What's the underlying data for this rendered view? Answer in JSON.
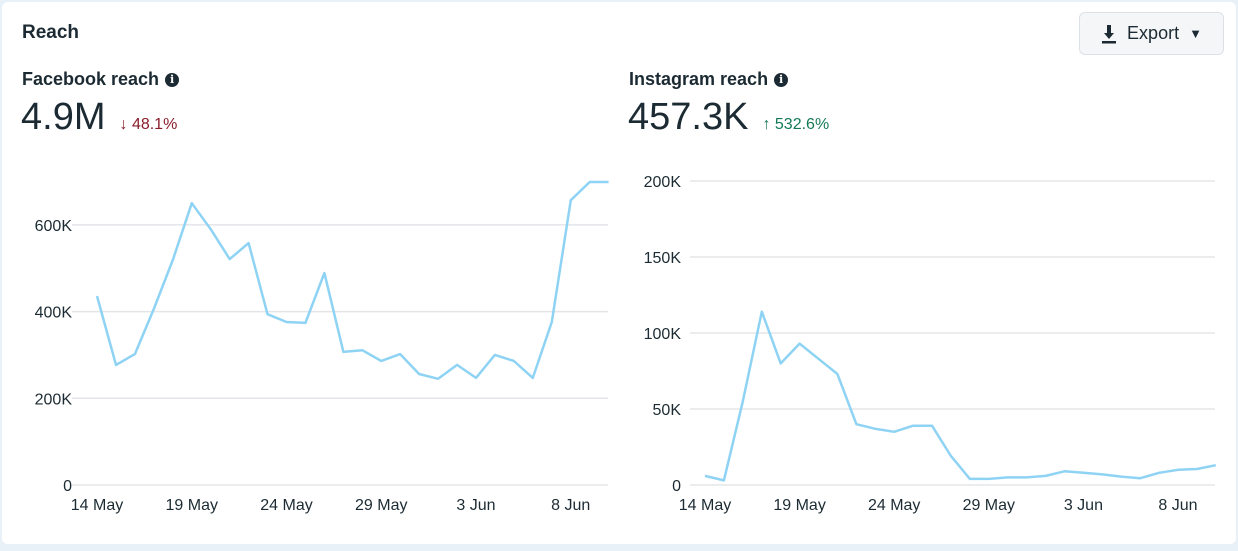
{
  "header": {
    "title": "Reach",
    "export_label": "Export"
  },
  "metrics": [
    {
      "label": "Facebook reach",
      "value": "4.9M",
      "delta": "48.1%",
      "direction": "down",
      "info_icon": "info-icon"
    },
    {
      "label": "Instagram reach",
      "value": "457.3K",
      "delta": "532.6%",
      "direction": "up",
      "info_icon": "info-icon"
    }
  ],
  "colors": {
    "line": "#8fd3f4",
    "down": "#8a1c2a",
    "up": "#147a55",
    "grid": "#e3e5e8"
  },
  "chart_data": [
    {
      "type": "line",
      "title": "Facebook reach",
      "x_start": "14 May",
      "x_end": "10 Jun",
      "xticks": [
        "14 May",
        "19 May",
        "24 May",
        "29 May",
        "3 Jun",
        "8 Jun"
      ],
      "xtick_days": [
        0,
        5,
        10,
        15,
        20,
        25
      ],
      "yticks": [
        "0",
        "200K",
        "400K",
        "600K"
      ],
      "ytick_values": [
        0,
        200000,
        400000,
        600000
      ],
      "ylim": [
        0,
        700000
      ],
      "values": [
        436000,
        277000,
        302000,
        406000,
        519000,
        650000,
        590000,
        521000,
        558000,
        394000,
        376000,
        374000,
        489000,
        307000,
        311000,
        286000,
        302000,
        256000,
        245000,
        277000,
        247000,
        300000,
        286000,
        247000,
        376000,
        657000,
        699000,
        699000
      ]
    },
    {
      "type": "line",
      "title": "Instagram reach",
      "x_start": "14 May",
      "x_end": "10 Jun",
      "xticks": [
        "14 May",
        "19 May",
        "24 May",
        "29 May",
        "3 Jun",
        "8 Jun"
      ],
      "xtick_days": [
        0,
        5,
        10,
        15,
        20,
        25
      ],
      "yticks": [
        "0",
        "50K",
        "100K",
        "150K",
        "200K"
      ],
      "ytick_values": [
        0,
        50000,
        100000,
        150000,
        200000
      ],
      "ylim": [
        0,
        200000
      ],
      "values": [
        6000,
        3000,
        55000,
        114000,
        80000,
        93000,
        83000,
        73000,
        40000,
        37000,
        35000,
        39000,
        39000,
        19000,
        4000,
        4000,
        5000,
        5000,
        6000,
        9000,
        8000,
        7000,
        5500,
        4500,
        8000,
        10000,
        10500,
        13000
      ]
    }
  ]
}
